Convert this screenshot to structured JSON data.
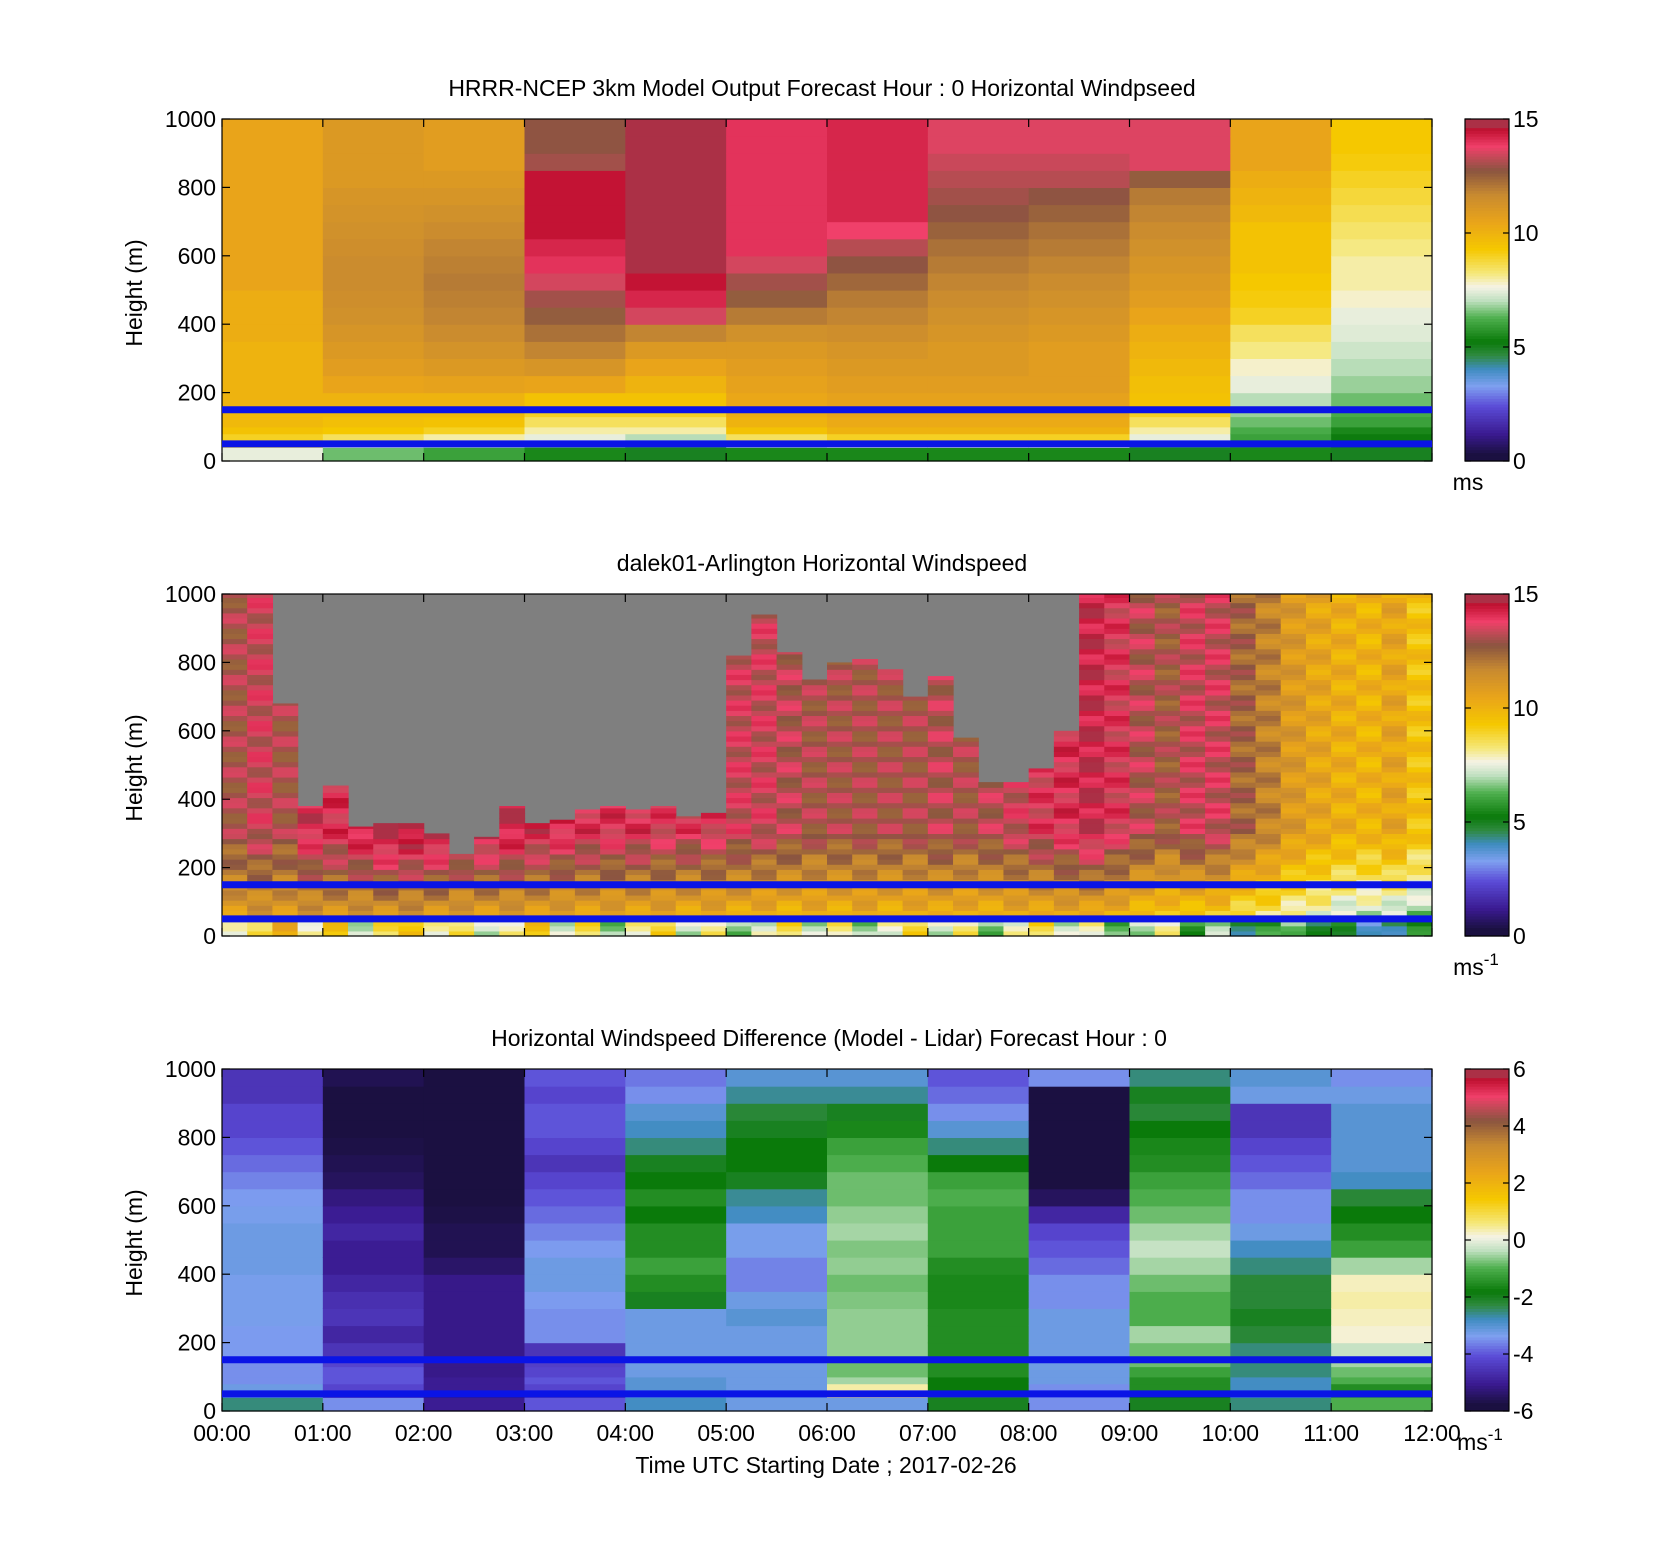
{
  "chart_data": [
    {
      "type": "heatmap",
      "title": "HRRR-NCEP 3km Model Output   Forecast Hour : 0 Horizontal Windpseed",
      "ylabel": "Height (m)",
      "xlabel": "",
      "ylim": [
        0,
        1000
      ],
      "yticks": [
        "0",
        "200",
        "400",
        "600",
        "800",
        "1000"
      ],
      "xticks": [],
      "colorbar": {
        "ticks": [
          "0",
          "5",
          "10",
          "15"
        ],
        "range": [
          0,
          15
        ],
        "unit": "ms",
        "unit_sup": ""
      },
      "reference_heights": [
        150,
        50
      ],
      "columns": 12,
      "heights": [
        0,
        40,
        60,
        80,
        100,
        130,
        150,
        200,
        250,
        300,
        350,
        400,
        450,
        500,
        550,
        600,
        650,
        700,
        750,
        800,
        850,
        900,
        950,
        1000
      ],
      "values": [
        [
          7.5,
          8.5,
          9.0,
          9.5,
          9.8,
          9.8,
          10.0,
          10.0,
          10.0,
          10.0,
          10.2,
          10.2,
          10.2,
          10.5,
          10.5,
          10.5,
          10.5,
          10.5,
          10.5,
          10.5,
          10.5,
          10.5,
          10.5
        ],
        [
          6.5,
          7.5,
          8.5,
          9.3,
          9.6,
          9.8,
          10.0,
          10.5,
          10.8,
          11.0,
          11.2,
          11.4,
          11.5,
          11.6,
          11.6,
          11.5,
          11.4,
          11.3,
          11.2,
          11.0,
          11.0,
          11.0,
          11.0
        ],
        [
          6.0,
          7.0,
          8.0,
          9.0,
          9.5,
          9.8,
          10.0,
          10.6,
          11.0,
          11.3,
          11.6,
          11.8,
          11.9,
          12.0,
          11.9,
          11.8,
          11.6,
          11.4,
          11.2,
          11.0,
          10.8,
          10.8,
          10.8
        ],
        [
          5.5,
          6.5,
          7.5,
          8.0,
          8.5,
          9.0,
          9.5,
          10.5,
          11.2,
          11.8,
          12.2,
          12.6,
          13.0,
          13.5,
          14.0,
          14.2,
          14.5,
          14.5,
          14.5,
          14.5,
          13.0,
          12.8,
          12.8
        ],
        [
          5.0,
          6.0,
          7.0,
          8.0,
          8.5,
          9.0,
          9.5,
          10.0,
          10.5,
          11.0,
          11.8,
          13.5,
          14.2,
          14.5,
          14.8,
          15.0,
          15.0,
          15.2,
          15.2,
          15.2,
          15.2,
          15.0,
          15.0
        ],
        [
          5.5,
          7.0,
          8.5,
          9.5,
          10.0,
          10.2,
          10.4,
          10.6,
          10.8,
          11.0,
          11.4,
          12.0,
          12.6,
          13.0,
          13.5,
          14.0,
          14.0,
          14.0,
          14.0,
          14.0,
          14.0,
          14.0,
          14.0
        ],
        [
          5.5,
          7.5,
          9.0,
          10.0,
          10.3,
          10.5,
          10.6,
          10.8,
          11.0,
          11.2,
          11.5,
          11.8,
          12.0,
          12.4,
          12.8,
          13.2,
          13.8,
          14.2,
          14.2,
          14.2,
          14.2,
          14.2,
          14.2
        ],
        [
          5.5,
          7.5,
          9.0,
          10.0,
          10.3,
          10.5,
          10.6,
          10.8,
          11.0,
          11.0,
          11.2,
          11.4,
          11.6,
          11.8,
          12.0,
          12.2,
          12.5,
          12.8,
          13.0,
          13.2,
          13.4,
          13.6,
          13.6
        ],
        [
          5.5,
          7.5,
          9.0,
          10.0,
          10.3,
          10.5,
          10.6,
          10.8,
          10.8,
          10.8,
          11.0,
          11.2,
          11.4,
          11.6,
          11.8,
          12.0,
          12.2,
          12.5,
          12.8,
          13.2,
          13.4,
          13.6,
          13.6
        ],
        [
          5.0,
          6.0,
          7.5,
          8.0,
          8.5,
          9.0,
          9.5,
          9.6,
          9.8,
          10.0,
          10.2,
          10.5,
          10.8,
          11.0,
          11.2,
          11.4,
          11.6,
          11.8,
          12.0,
          12.6,
          13.6,
          13.6,
          13.6
        ],
        [
          5.5,
          5.8,
          6.0,
          6.2,
          6.5,
          6.8,
          7.0,
          7.5,
          7.8,
          8.2,
          8.5,
          9.0,
          9.2,
          9.3,
          9.5,
          9.5,
          9.5,
          9.8,
          10.0,
          10.2,
          10.5,
          10.5,
          10.5
        ],
        [
          5.0,
          5.0,
          5.2,
          5.5,
          6.0,
          6.2,
          6.5,
          6.8,
          7.0,
          7.2,
          7.4,
          7.5,
          7.8,
          8.0,
          8.0,
          8.2,
          8.4,
          8.6,
          8.8,
          9.0,
          9.2,
          9.3,
          9.3
        ]
      ],
      "nodata": [
        [
          11,
          8
        ],
        [
          11,
          4
        ],
        [
          10,
          7
        ]
      ]
    },
    {
      "type": "heatmap",
      "title": "dalek01-Arlington  Horizontal Windspeed",
      "ylabel": "Height (m)",
      "xlabel": "",
      "ylim": [
        0,
        1000
      ],
      "yticks": [
        "0",
        "200",
        "400",
        "600",
        "800",
        "1000"
      ],
      "xticks": [],
      "colorbar": {
        "ticks": [
          "0",
          "5",
          "10",
          "15"
        ],
        "range": [
          0,
          15
        ],
        "unit": "ms",
        "unit_sup": "-1"
      },
      "reference_heights": [
        150,
        50
      ],
      "columns": 48,
      "topheights_m": [
        1000,
        1000,
        680,
        380,
        440,
        320,
        330,
        330,
        300,
        240,
        290,
        380,
        330,
        340,
        370,
        380,
        370,
        380,
        350,
        360,
        820,
        940,
        830,
        750,
        800,
        810,
        780,
        700,
        760,
        580,
        450,
        450,
        490,
        600,
        1000,
        1000,
        1000,
        1000,
        1000,
        1000,
        1000,
        1000,
        1000,
        1000,
        1000,
        1000,
        1000,
        1000
      ],
      "surface_speed_ms": [
        10.0,
        10.2,
        10.2,
        10.0,
        10.0,
        9.8,
        9.8,
        9.8,
        9.6,
        9.5,
        9.5,
        9.5,
        9.5,
        9.3,
        9.3,
        9.2,
        9.2,
        9.2,
        9.0,
        9.0,
        9.0,
        8.8,
        8.8,
        9.0,
        9.0,
        9.2,
        9.0,
        9.0,
        9.2,
        9.0,
        9.0,
        9.0,
        9.0,
        9.0,
        8.8,
        8.6,
        8.4,
        8.0,
        7.8,
        7.5,
        7.2,
        7.0,
        6.8,
        6.5,
        6.2,
        6.0,
        5.8,
        5.5
      ],
      "upper_speed_ms": [
        13.0,
        13.5,
        13.0,
        14.2,
        14.0,
        14.5,
        14.8,
        14.8,
        14.8,
        14.5,
        14.5,
        14.5,
        14.2,
        14.2,
        14.0,
        14.0,
        14.0,
        13.8,
        13.8,
        13.8,
        13.5,
        13.5,
        13.2,
        13.0,
        13.0,
        13.0,
        13.0,
        13.0,
        13.2,
        13.0,
        13.2,
        13.5,
        13.8,
        14.0,
        14.5,
        13.8,
        13.2,
        12.8,
        13.5,
        13.5,
        12.5,
        11.8,
        11.0,
        10.5,
        10.2,
        10.0,
        10.5,
        9.5
      ],
      "nodata_label": "",
      "note": ""
    },
    {
      "type": "heatmap",
      "title": "Horizontal Windspeed Difference (Model - Lidar) Forecast Hour : 0",
      "ylabel": "Height (m)",
      "xlabel": "Time UTC  Starting Date ; 2017-02-26",
      "ylim": [
        0,
        1000
      ],
      "yticks": [
        "0",
        "200",
        "400",
        "600",
        "800",
        "1000"
      ],
      "xticks": [
        "00:00",
        "01:00",
        "02:00",
        "03:00",
        "04:00",
        "05:00",
        "06:00",
        "07:00",
        "08:00",
        "09:00",
        "10:00",
        "11:00",
        "12:00"
      ],
      "colorbar": {
        "ticks": [
          "-6",
          "-4",
          "-2",
          "0",
          "2",
          "4",
          "6"
        ],
        "range": [
          -6,
          6
        ],
        "unit": "ms",
        "unit_sup": "-1"
      },
      "reference_heights": [
        150,
        50
      ],
      "columns": 12,
      "values": [
        [
          -2.5,
          -3.0,
          -3.2,
          -3.5,
          -3.5,
          -3.5,
          -3.4,
          -3.4,
          -3.3,
          -3.3,
          -3.3,
          -3.2,
          -3.2,
          -3.2,
          -3.3,
          -3.4,
          -3.6,
          -3.8,
          -4.0,
          -4.2,
          -4.2,
          -4.5,
          -4.5
        ],
        [
          -3.5,
          -4.5,
          -4.2,
          -4.0,
          -4.0,
          -4.2,
          -4.5,
          -4.8,
          -4.5,
          -4.6,
          -4.8,
          -5.0,
          -5.0,
          -4.8,
          -5.0,
          -5.2,
          -5.5,
          -5.6,
          -5.7,
          -5.8,
          -5.8,
          -5.8,
          -5.6
        ],
        [
          -5.0,
          -5.2,
          -5.0,
          -5.0,
          -5.1,
          -5.1,
          -5.1,
          -5.1,
          -5.1,
          -5.1,
          -5.1,
          -5.4,
          -5.6,
          -5.6,
          -5.7,
          -5.8,
          -5.8,
          -5.8,
          -5.8,
          -5.8,
          -5.8,
          -5.8,
          -5.8
        ],
        [
          -4.0,
          -4.5,
          -4.2,
          -4.0,
          -4.2,
          -4.3,
          -4.5,
          -3.5,
          -3.5,
          -3.4,
          -3.2,
          -3.2,
          -3.4,
          -3.6,
          -3.8,
          -4.0,
          -4.2,
          -4.5,
          -4.2,
          -4.0,
          -4.0,
          -4.2,
          -4.0
        ],
        [
          -2.8,
          -3.0,
          -3.0,
          -3.0,
          -3.2,
          -3.2,
          -3.2,
          -3.2,
          -3.2,
          -2.0,
          -1.5,
          -1.2,
          -1.5,
          -1.5,
          -1.8,
          -1.5,
          -1.8,
          -2.0,
          -2.5,
          -2.8,
          -3.0,
          -3.5,
          -3.7
        ],
        [
          -3.2,
          -3.2,
          -3.2,
          -3.2,
          -3.2,
          -3.2,
          -3.2,
          -3.2,
          -3.0,
          -3.2,
          -3.6,
          -3.6,
          -3.3,
          -3.3,
          -2.8,
          -2.6,
          -2.0,
          -1.8,
          -1.8,
          -2.0,
          -2.2,
          -2.6,
          -3.0
        ],
        [
          -3.2,
          0.5,
          0.4,
          -0.5,
          -0.8,
          -0.8,
          -0.6,
          -0.6,
          -0.6,
          -0.7,
          -0.8,
          -0.6,
          -0.7,
          -0.5,
          -0.6,
          -0.8,
          -0.8,
          -1.0,
          -1.2,
          -1.6,
          -2.0,
          -2.6,
          -3.0
        ],
        [
          -2.0,
          -2.2,
          -1.8,
          -1.8,
          -1.5,
          -1.5,
          -1.5,
          -1.5,
          -1.5,
          -1.6,
          -1.6,
          -1.5,
          -1.2,
          -1.2,
          -1.2,
          -1.0,
          -1.2,
          -1.8,
          -2.5,
          -3.0,
          -3.5,
          -3.8,
          -4.0
        ],
        [
          -3.5,
          -3.5,
          -3.5,
          -3.2,
          -3.2,
          -3.2,
          -3.2,
          -3.2,
          -3.2,
          -3.5,
          -3.5,
          -3.8,
          -4.0,
          -4.2,
          -4.8,
          -5.5,
          -5.8,
          -5.8,
          -5.8,
          -5.8,
          -5.8,
          -5.8,
          -3.5
        ],
        [
          -2.0,
          -1.8,
          -1.5,
          -1.5,
          -1.2,
          -0.8,
          -0.8,
          -0.5,
          -1.0,
          -1.0,
          -0.8,
          -0.5,
          -0.3,
          -0.5,
          -0.8,
          -1.0,
          -1.2,
          -1.5,
          -1.6,
          -1.8,
          -2.2,
          -2.0,
          -2.5
        ],
        [
          -2.5,
          -2.8,
          -2.8,
          -2.8,
          -2.5,
          -2.5,
          -2.5,
          -2.2,
          -2.0,
          -2.2,
          -2.2,
          -2.5,
          -2.8,
          -3.2,
          -3.5,
          -3.5,
          -3.8,
          -4.0,
          -4.2,
          -4.5,
          -4.5,
          -3.2,
          -3.0
        ],
        [
          -1.0,
          -1.2,
          -1.5,
          -1.0,
          -0.8,
          -0.5,
          -0.3,
          0.2,
          0.3,
          0.4,
          0.3,
          -0.5,
          -1.2,
          -1.5,
          -1.8,
          -2.2,
          -2.8,
          -3.0,
          -3.0,
          -3.0,
          -3.0,
          -3.2,
          -3.5
        ]
      ],
      "heights": [
        0,
        40,
        60,
        80,
        100,
        130,
        150,
        200,
        250,
        300,
        350,
        400,
        450,
        500,
        550,
        600,
        650,
        700,
        750,
        800,
        850,
        900,
        950,
        1000
      ]
    }
  ]
}
